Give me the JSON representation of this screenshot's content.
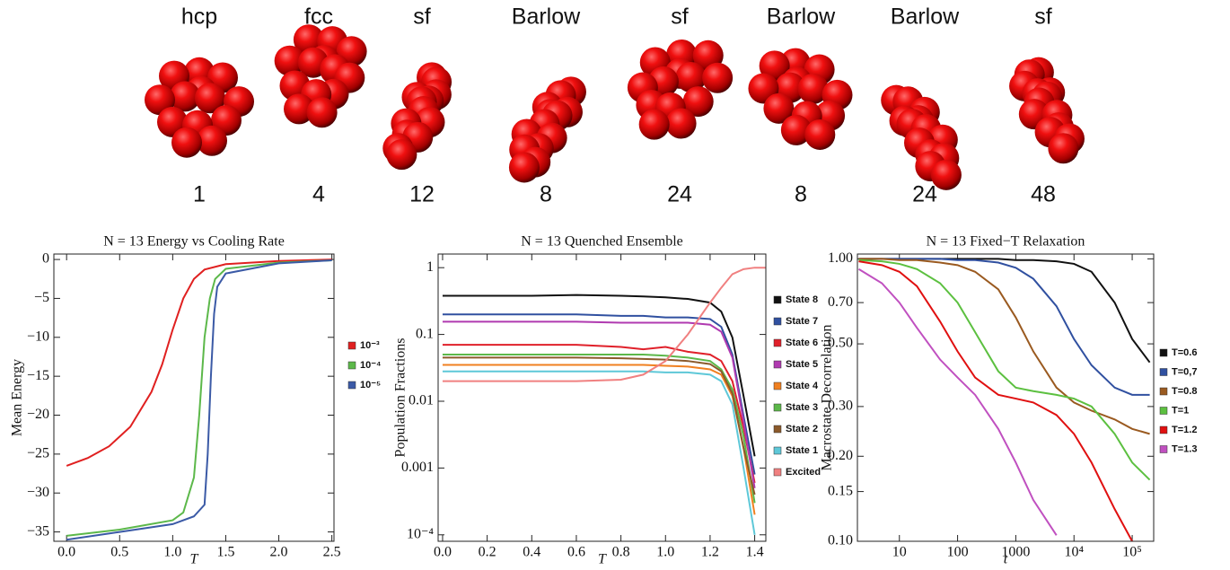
{
  "header": {
    "clusters": [
      {
        "label": "hcp",
        "count": 1
      },
      {
        "label": "fcc",
        "count": 4
      },
      {
        "label": "sf",
        "count": 12
      },
      {
        "label": "Barlow",
        "count": 8
      },
      {
        "label": "sf",
        "count": 24
      },
      {
        "label": "Barlow",
        "count": 8
      },
      {
        "label": "Barlow",
        "count": 24
      },
      {
        "label": "sf",
        "count": 48
      }
    ]
  },
  "chart_data": [
    {
      "type": "line",
      "title": "N = 13 Energy vs Cooling Rate",
      "x_label": "T",
      "y_label": "Mean Energy",
      "legend": "right",
      "xlim": [
        -0.12,
        2.52
      ],
      "xticks": [
        {
          "value": 0,
          "label": "0.0"
        },
        0.5,
        {
          "value": 1,
          "label": "1.0"
        },
        1.5,
        {
          "value": 2,
          "label": "2.0"
        },
        2.5
      ],
      "ylim": [
        -36.2,
        0.7
      ],
      "yticks": [
        0,
        {
          "value": -5,
          "label": "−5"
        },
        {
          "value": -10,
          "label": "−10"
        },
        {
          "value": -15,
          "label": "−15"
        },
        {
          "value": -20,
          "label": "−20"
        },
        {
          "value": -25,
          "label": "−25"
        },
        {
          "value": -30,
          "label": "−30"
        },
        {
          "value": -35,
          "label": "−35"
        }
      ],
      "series": [
        {
          "name": "10⁻³",
          "color": "#e02020",
          "x": [
            0,
            0.2,
            0.4,
            0.6,
            0.8,
            0.9,
            1.0,
            1.1,
            1.2,
            1.3,
            1.5,
            2.0,
            2.5
          ],
          "values": [
            -26.5,
            -25.5,
            -24,
            -21.5,
            -17,
            -13.5,
            -9,
            -5,
            -2.5,
            -1.3,
            -0.6,
            -0.2,
            0
          ]
        },
        {
          "name": "10⁻⁴",
          "color": "#5cb84a",
          "x": [
            0,
            0.5,
            1.0,
            1.1,
            1.2,
            1.25,
            1.3,
            1.35,
            1.4,
            1.5,
            2.0,
            2.5
          ],
          "values": [
            -35.5,
            -34.7,
            -33.5,
            -32.5,
            -28,
            -20,
            -10,
            -5,
            -2.5,
            -1.2,
            -0.4,
            -0.1
          ]
        },
        {
          "name": "10⁻⁵",
          "color": "#3b5aa6",
          "x": [
            0,
            0.5,
            1.0,
            1.2,
            1.3,
            1.33,
            1.36,
            1.39,
            1.42,
            1.5,
            2.0,
            2.5
          ],
          "values": [
            -36,
            -35,
            -34,
            -33,
            -31.5,
            -25,
            -15,
            -7,
            -3.5,
            -1.8,
            -0.5,
            -0.1
          ]
        }
      ]
    },
    {
      "type": "line",
      "title": "N = 13 Quenched Ensemble",
      "x_label": "T",
      "y_label": "Population Fractions",
      "legend": "right",
      "log_y": true,
      "xlim": [
        -0.02,
        1.45
      ],
      "xticks": [
        {
          "value": 0,
          "label": "0.0"
        },
        0.2,
        0.4,
        0.6,
        0.8,
        {
          "value": 1,
          "label": "1.0"
        },
        1.2,
        1.4
      ],
      "ylim": [
        8e-05,
        1.6
      ],
      "yticks": [
        1,
        0.1,
        0.01,
        0.001,
        {
          "value": 0.0001,
          "label": "10⁻⁴"
        }
      ],
      "x": [
        0,
        0.2,
        0.4,
        0.6,
        0.8,
        0.9,
        1.0,
        1.1,
        1.2,
        1.25,
        1.3,
        1.35,
        1.4,
        1.45
      ],
      "series": [
        {
          "name": "State 8",
          "color": "#111111",
          "values": [
            0.38,
            0.38,
            0.38,
            0.39,
            0.38,
            0.37,
            0.36,
            0.34,
            0.3,
            0.22,
            0.09,
            0.012,
            0.0015,
            null
          ]
        },
        {
          "name": "State 7",
          "color": "#3050a0",
          "values": [
            0.2,
            0.2,
            0.2,
            0.2,
            0.19,
            0.19,
            0.18,
            0.18,
            0.17,
            0.13,
            0.05,
            0.006,
            0.0008,
            null
          ]
        },
        {
          "name": "State 6",
          "color": "#e0202a",
          "values": [
            0.07,
            0.07,
            0.07,
            0.07,
            0.065,
            0.06,
            0.065,
            0.055,
            0.05,
            0.04,
            0.02,
            0.004,
            0.0006,
            null
          ]
        },
        {
          "name": "State 5",
          "color": "#b03ab0",
          "values": [
            0.155,
            0.155,
            0.155,
            0.155,
            0.15,
            0.15,
            0.15,
            0.15,
            0.14,
            0.11,
            0.045,
            0.005,
            0.0005,
            null
          ]
        },
        {
          "name": "State 4",
          "color": "#f08020",
          "values": [
            0.035,
            0.035,
            0.035,
            0.035,
            0.035,
            0.035,
            0.034,
            0.033,
            0.03,
            0.025,
            0.012,
            0.002,
            0.0002,
            null
          ]
        },
        {
          "name": "State 3",
          "color": "#5cb84a",
          "values": [
            0.05,
            0.05,
            0.05,
            0.05,
            0.05,
            0.05,
            0.048,
            0.045,
            0.04,
            0.03,
            0.015,
            0.003,
            0.0003,
            null
          ]
        },
        {
          "name": "State 2",
          "color": "#8b5a2b",
          "values": [
            0.045,
            0.045,
            0.045,
            0.045,
            0.044,
            0.043,
            0.042,
            0.04,
            0.036,
            0.028,
            0.013,
            0.002,
            0.0004,
            null
          ]
        },
        {
          "name": "State 1",
          "color": "#5ec8d8",
          "values": [
            0.028,
            0.028,
            0.028,
            0.028,
            0.028,
            0.028,
            0.027,
            0.027,
            0.025,
            0.02,
            0.009,
            0.001,
            0.0001,
            null
          ]
        },
        {
          "name": "Excited",
          "color": "#f08080",
          "values": [
            0.02,
            0.02,
            0.02,
            0.02,
            0.021,
            0.025,
            0.04,
            0.1,
            0.3,
            0.5,
            0.8,
            0.95,
            1,
            1
          ]
        }
      ]
    },
    {
      "type": "line",
      "title": "N = 13 Fixed−T Relaxation",
      "x_label": "t",
      "y_label": "Macrostate Decorrelation",
      "legend": "right",
      "log_x": true,
      "log_y": true,
      "xlim": [
        1.9,
        234000
      ],
      "xticks": [
        10,
        100,
        1000,
        {
          "value": 10000,
          "label": "10⁴"
        },
        {
          "value": 100000,
          "label": "10⁵"
        }
      ],
      "ylim": [
        0.1,
        1.04
      ],
      "yticks": [
        {
          "value": 1,
          "label": "1.00"
        },
        {
          "value": 0.7,
          "label": "0.70"
        },
        {
          "value": 0.5,
          "label": "0.50"
        },
        {
          "value": 0.3,
          "label": "0.30"
        },
        {
          "value": 0.2,
          "label": "0.20"
        },
        0.15,
        {
          "value": 0.1,
          "label": "0.10"
        }
      ],
      "x": [
        2,
        5,
        10,
        20,
        50,
        100,
        200,
        500,
        1000,
        2000,
        5000,
        10000,
        20000,
        50000,
        100000,
        200000
      ],
      "series": [
        {
          "name": "T=0.6",
          "color": "#111111",
          "values": [
            1,
            1,
            1,
            1,
            1,
            1,
            1,
            1,
            0.99,
            0.99,
            0.98,
            0.96,
            0.9,
            0.7,
            0.52,
            0.43
          ]
        },
        {
          "name": "T=0,7",
          "color": "#3050a0",
          "values": [
            1,
            1,
            1,
            1,
            1,
            0.99,
            0.99,
            0.97,
            0.93,
            0.85,
            0.68,
            0.52,
            0.42,
            0.35,
            0.33,
            0.33
          ]
        },
        {
          "name": "T=0.8",
          "color": "#9a5a20",
          "values": [
            1,
            1,
            0.99,
            0.99,
            0.97,
            0.95,
            0.9,
            0.78,
            0.62,
            0.47,
            0.35,
            0.31,
            0.29,
            0.27,
            0.25,
            0.24
          ]
        },
        {
          "name": "T=1",
          "color": "#5cc040",
          "values": [
            0.99,
            0.98,
            0.96,
            0.92,
            0.82,
            0.7,
            0.55,
            0.4,
            0.35,
            0.34,
            0.33,
            0.32,
            0.3,
            0.24,
            0.19,
            0.165
          ]
        },
        {
          "name": "T=1.2",
          "color": "#e01010",
          "values": [
            0.98,
            0.95,
            0.9,
            0.8,
            0.6,
            0.47,
            0.38,
            0.33,
            0.32,
            0.31,
            0.28,
            0.24,
            0.19,
            0.13,
            0.1,
            null
          ]
        },
        {
          "name": "T=1.3",
          "color": "#c050c0",
          "values": [
            0.92,
            0.82,
            0.7,
            0.57,
            0.44,
            0.38,
            0.33,
            0.25,
            0.19,
            0.14,
            0.105,
            null,
            null,
            null,
            null,
            null
          ]
        }
      ]
    }
  ]
}
